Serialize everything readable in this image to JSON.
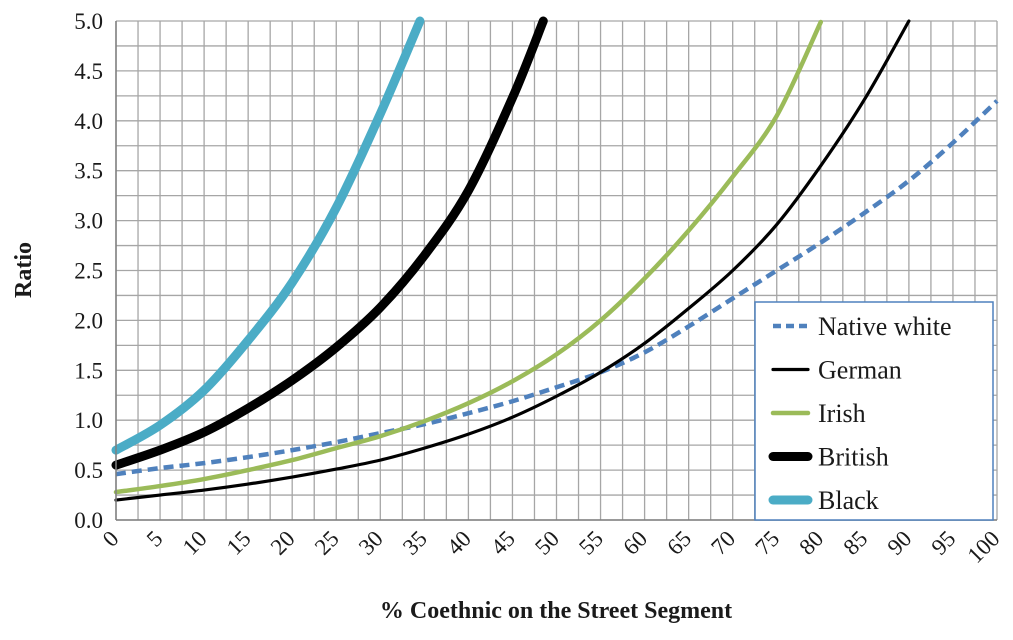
{
  "chart_data": {
    "type": "line",
    "title": "",
    "xlabel": "% Coethnic on the Street Segment",
    "ylabel": "Ratio",
    "xlim": [
      0,
      100
    ],
    "ylim": [
      0,
      5
    ],
    "x_ticks": [
      0,
      5,
      10,
      15,
      20,
      25,
      30,
      35,
      40,
      45,
      50,
      55,
      60,
      65,
      70,
      75,
      80,
      85,
      90,
      95,
      100
    ],
    "x_tick_labels": [
      "0",
      "5",
      "10",
      "15",
      "20",
      "25",
      "30",
      "35",
      "40",
      "45",
      "50",
      "55",
      "60",
      "65",
      "70",
      "75",
      "80",
      "85",
      "90",
      "95",
      "100"
    ],
    "y_ticks": [
      0,
      0.5,
      1,
      1.5,
      2,
      2.5,
      3,
      3.5,
      4,
      4.5,
      5
    ],
    "y_tick_labels": [
      "0.0",
      "0.5",
      "1.0",
      "1.5",
      "2.0",
      "2.5",
      "3.0",
      "3.5",
      "4.0",
      "4.5",
      "5.0"
    ],
    "grid": true,
    "legend_position": "bottom-right",
    "series": [
      {
        "name": "Native white",
        "color": "#4f81bd",
        "style": "dashed",
        "x": [
          0,
          5,
          10,
          15,
          20,
          25,
          30,
          35,
          40,
          45,
          50,
          55,
          60,
          65,
          70,
          75,
          80,
          85,
          90,
          95,
          100
        ],
        "y": [
          0.46,
          0.52,
          0.57,
          0.63,
          0.7,
          0.78,
          0.87,
          0.96,
          1.07,
          1.19,
          1.33,
          1.48,
          1.68,
          1.94,
          2.22,
          2.5,
          2.78,
          3.08,
          3.4,
          3.78,
          4.2
        ]
      },
      {
        "name": "German",
        "color": "#000000",
        "style": "thin",
        "x": [
          0,
          5,
          10,
          15,
          20,
          25,
          30,
          35,
          40,
          45,
          50,
          55,
          60,
          65,
          70,
          75,
          80,
          85,
          90
        ],
        "y": [
          0.2,
          0.25,
          0.3,
          0.36,
          0.43,
          0.51,
          0.6,
          0.72,
          0.86,
          1.03,
          1.24,
          1.48,
          1.77,
          2.12,
          2.5,
          2.96,
          3.55,
          4.22,
          5.0
        ]
      },
      {
        "name": "Irish",
        "color": "#9bbb59",
        "style": "medium",
        "x": [
          0,
          5,
          10,
          15,
          20,
          25,
          30,
          35,
          40,
          45,
          50,
          55,
          60,
          65,
          70,
          75,
          80
        ],
        "y": [
          0.28,
          0.34,
          0.41,
          0.5,
          0.6,
          0.72,
          0.84,
          0.99,
          1.17,
          1.39,
          1.66,
          2.0,
          2.42,
          2.9,
          3.44,
          4.05,
          4.99
        ]
      },
      {
        "name": "British",
        "color": "#000000",
        "style": "thick",
        "x": [
          0,
          5,
          10,
          15,
          20,
          25,
          30,
          35,
          40,
          45,
          48.5
        ],
        "y": [
          0.55,
          0.7,
          0.88,
          1.12,
          1.4,
          1.73,
          2.13,
          2.65,
          3.3,
          4.23,
          5.0
        ]
      },
      {
        "name": "Black",
        "color": "#4bacc6",
        "style": "thick",
        "x": [
          0,
          5,
          10,
          15,
          20,
          25,
          30,
          34.5
        ],
        "y": [
          0.7,
          0.95,
          1.3,
          1.8,
          2.38,
          3.13,
          4.07,
          5.0
        ]
      }
    ]
  }
}
